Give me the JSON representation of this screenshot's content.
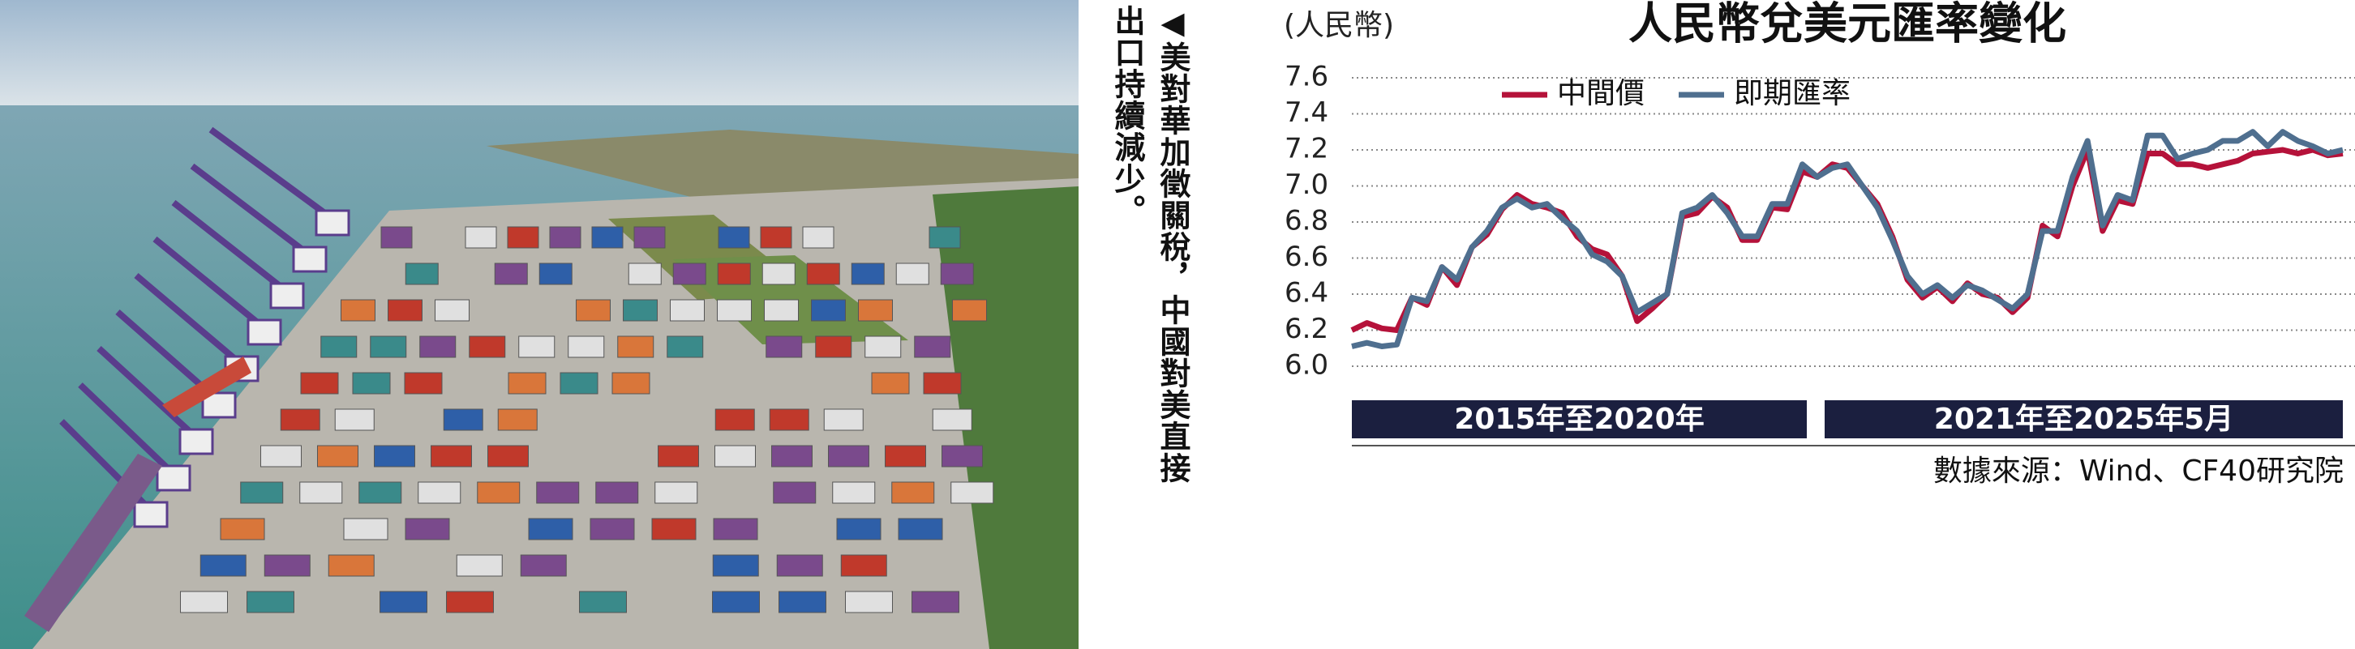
{
  "photo_caption": "◀美對華加徵關稅，中國對美直接出口持續減少。",
  "chart_data": {
    "type": "line",
    "title": "人民幣兌美元匯率變化",
    "y_label": "(人民幣)",
    "categories": [
      null,
      null,
      null,
      null,
      null,
      null,
      null,
      null,
      null,
      null,
      null,
      null,
      null,
      null,
      null,
      null,
      null,
      null,
      null,
      null,
      null,
      null,
      null,
      null,
      null,
      null,
      null,
      null,
      null,
      null,
      null,
      null,
      null,
      null,
      null,
      null,
      null,
      null,
      null,
      null,
      null,
      null,
      null,
      null,
      null,
      null,
      null,
      null,
      null,
      null,
      null,
      null,
      null,
      null,
      null,
      null,
      null,
      null,
      null,
      null,
      null,
      null,
      null,
      null,
      null,
      null,
      null
    ],
    "series": [
      {
        "name": "中間價",
        "color": "#b5123a",
        "values": [
          6.2,
          6.24,
          6.21,
          6.2,
          6.38,
          6.34,
          6.55,
          6.45,
          6.66,
          6.73,
          6.87,
          6.95,
          6.9,
          6.88,
          6.85,
          6.72,
          6.65,
          6.62,
          6.5,
          6.25,
          6.32,
          6.4,
          6.83,
          6.85,
          6.94,
          6.88,
          6.7,
          6.7,
          6.88,
          6.87,
          7.08,
          7.05,
          7.12,
          7.1,
          7.0,
          6.9,
          6.72,
          6.48,
          6.38,
          6.44,
          6.36,
          6.46,
          6.4,
          6.38,
          6.3,
          6.38,
          6.78,
          6.72,
          7.0,
          7.2,
          6.75,
          6.92,
          6.9,
          7.18,
          7.18,
          7.12,
          7.12,
          7.1,
          7.12,
          7.14,
          7.18,
          7.19,
          7.2,
          7.18,
          7.2,
          7.17,
          7.18
        ]
      },
      {
        "name": "即期匯率",
        "color": "#4f6f8f",
        "values": [
          6.11,
          6.13,
          6.11,
          6.12,
          6.38,
          6.36,
          6.55,
          6.48,
          6.66,
          6.75,
          6.88,
          6.93,
          6.88,
          6.9,
          6.82,
          6.75,
          6.62,
          6.58,
          6.5,
          6.3,
          6.35,
          6.4,
          6.85,
          6.88,
          6.95,
          6.85,
          6.72,
          6.72,
          6.9,
          6.9,
          7.12,
          7.05,
          7.1,
          7.12,
          7.0,
          6.88,
          6.7,
          6.5,
          6.4,
          6.45,
          6.38,
          6.45,
          6.42,
          6.37,
          6.32,
          6.4,
          6.75,
          6.75,
          7.05,
          7.25,
          6.78,
          6.95,
          6.92,
          7.28,
          7.28,
          7.15,
          7.18,
          7.2,
          7.25,
          7.25,
          7.3,
          7.22,
          7.3,
          7.25,
          7.22,
          7.18,
          7.2
        ]
      }
    ],
    "ylim": [
      6.0,
      7.6
    ],
    "yticks": [
      7.6,
      7.4,
      7.2,
      {
        "value": 7,
        "label": "7.0"
      },
      6.8,
      6.6,
      6.4,
      6.2,
      {
        "value": 6,
        "label": "6.0"
      }
    ],
    "grid": true,
    "legend": "upper left",
    "periods": [
      "2015年至2020年",
      "2021年至2025年5月"
    ],
    "source": "數據來源：Wind、CF40研究院"
  }
}
